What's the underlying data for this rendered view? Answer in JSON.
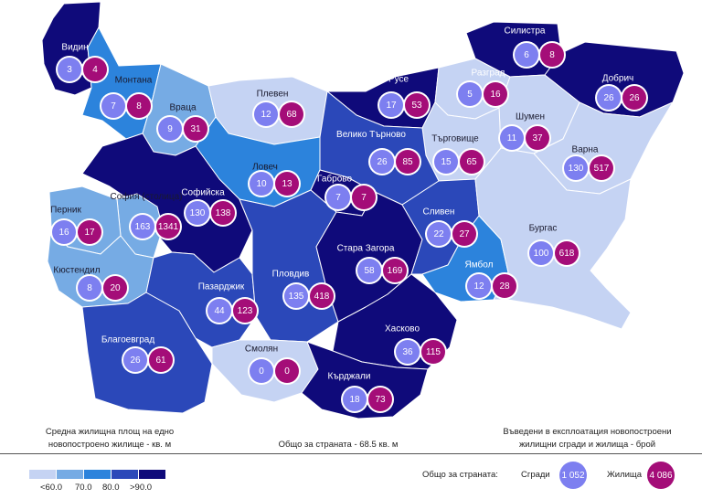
{
  "legend": {
    "left_title": "Средна жилищна площ на едно новопостроено жилище - кв. м",
    "left_title_line1": "Средна жилищна площ на едно",
    "left_title_line2": "новопостроено жилище - кв. м",
    "center_text": "Общо за страната - 68.5 кв. м",
    "right_title_line1": "Въведени в експлоатация новопостроени",
    "right_title_line2": "жилищни сгради и жилища - брой",
    "scale_labels": [
      "<60.0",
      "70.0",
      "80.0",
      ">90.0"
    ],
    "scale_colors": [
      "#c5d3f3",
      "#76abe4",
      "#2c83dc",
      "#2b48b9",
      "#0f0a7a"
    ],
    "country_total_label": "Общо за страната:",
    "buildings_label": "Сгради",
    "buildings_total": "1 052",
    "dwellings_label": "Жилища",
    "dwellings_total": "4 086",
    "buildings_color": "#7d7ff0",
    "dwellings_color": "#a40d78"
  },
  "regions": [
    {
      "name": "Видин",
      "buildings": "3",
      "dwellings": "4",
      "class": ">90.0"
    },
    {
      "name": "Монтана",
      "buildings": "7",
      "dwellings": "8",
      "class": "80.0"
    },
    {
      "name": "Враца",
      "buildings": "9",
      "dwellings": "31",
      "class": "70.0"
    },
    {
      "name": "Плевен",
      "buildings": "12",
      "dwellings": "68",
      "class": "<60.0"
    },
    {
      "name": "Русе",
      "buildings": "17",
      "dwellings": "53",
      "class": ">90.0"
    },
    {
      "name": "Разград",
      "buildings": "5",
      "dwellings": "16",
      "class": "70.0"
    },
    {
      "name": "Силистра",
      "buildings": "6",
      "dwellings": "8",
      "class": ">90.0"
    },
    {
      "name": "Добрич",
      "buildings": "26",
      "dwellings": "26",
      "class": ">90.0"
    },
    {
      "name": "Шумен",
      "buildings": "11",
      "dwellings": "37",
      "class": "70.0"
    },
    {
      "name": "Търговище",
      "buildings": "15",
      "dwellings": "65",
      "class": "<60.0"
    },
    {
      "name": "Варна",
      "buildings": "130",
      "dwellings": "517",
      "class": "<60.0"
    },
    {
      "name": "Велико Търново",
      "buildings": "26",
      "dwellings": "85",
      "class": "90.0"
    },
    {
      "name": "Ловеч",
      "buildings": "10",
      "dwellings": "13",
      "class": "80.0"
    },
    {
      "name": "Габрово",
      "buildings": "7",
      "dwellings": "7",
      "class": ">90.0"
    },
    {
      "name": "Софийска",
      "buildings": "130",
      "dwellings": "138",
      "class": ">90.0"
    },
    {
      "name": "София (столица)",
      "buildings": "163",
      "dwellings": "1341",
      "class": "70.0"
    },
    {
      "name": "Перник",
      "buildings": "16",
      "dwellings": "17",
      "class": "70.0"
    },
    {
      "name": "Кюстендил",
      "buildings": "8",
      "dwellings": "20",
      "class": "70.0"
    },
    {
      "name": "Сливен",
      "buildings": "22",
      "dwellings": "27",
      "class": "90.0"
    },
    {
      "name": "Бургас",
      "buildings": "100",
      "dwellings": "618",
      "class": "<60.0"
    },
    {
      "name": "Ямбол",
      "buildings": "12",
      "dwellings": "28",
      "class": "80.0"
    },
    {
      "name": "Стара Загора",
      "buildings": "58",
      "dwellings": "169",
      "class": ">90.0"
    },
    {
      "name": "Пловдив",
      "buildings": "135",
      "dwellings": "418",
      "class": "90.0"
    },
    {
      "name": "Пазарджик",
      "buildings": "44",
      "dwellings": "123",
      "class": "90.0"
    },
    {
      "name": "Благоевград",
      "buildings": "26",
      "dwellings": "61",
      "class": "90.0"
    },
    {
      "name": "Смолян",
      "buildings": "0",
      "dwellings": "0",
      "class": "<60.0"
    },
    {
      "name": "Хасково",
      "buildings": "36",
      "dwellings": "115",
      "class": ">90.0"
    },
    {
      "name": "Кърджали",
      "buildings": "18",
      "dwellings": "73",
      "class": ">90.0"
    }
  ]
}
